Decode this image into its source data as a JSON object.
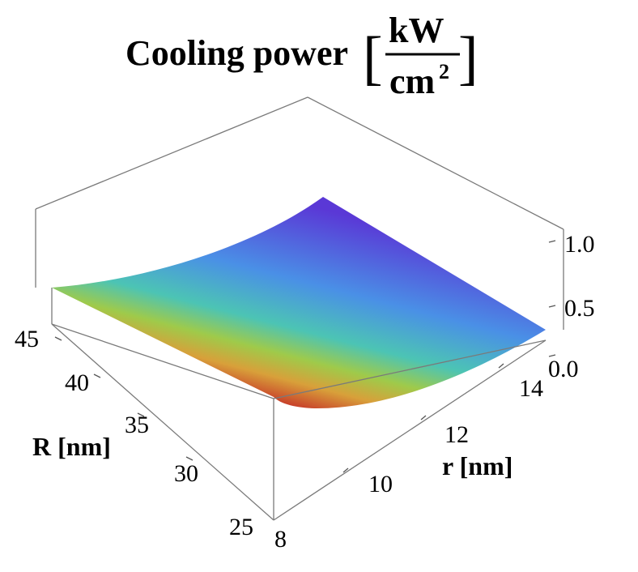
{
  "chart_data": {
    "type": "surface3d",
    "title": {
      "prefix": "Cooling power",
      "unit_numerator": "kW",
      "unit_denominator": "cm",
      "unit_denominator_exponent": "2"
    },
    "x_axis": {
      "label": "r [nm]",
      "range": [
        8,
        15
      ],
      "ticks": [
        "8",
        "10",
        "12",
        "14"
      ]
    },
    "y_axis": {
      "label": "R [nm]",
      "range": [
        25,
        47
      ],
      "ticks": [
        "25",
        "30",
        "35",
        "40",
        "45"
      ]
    },
    "z_axis": {
      "label": "",
      "range": [
        0,
        1.2
      ],
      "ticks": [
        "0.0",
        "0.5",
        "1.0"
      ]
    },
    "surface_samples": {
      "r_values": [
        8,
        15
      ],
      "R_values": [
        25,
        47
      ],
      "z_grid": [
        [
          0.1,
          0.36
        ],
        [
          0.56,
          0.92
        ]
      ]
    },
    "colormap": {
      "low": "#c8402a",
      "stops": [
        "#c8402a",
        "#d9a23a",
        "#9ec84a",
        "#4cc0b8",
        "#4a8ee6",
        "#5a4ad8"
      ],
      "high": "#5a3ad6"
    },
    "box": true,
    "grid": false
  }
}
